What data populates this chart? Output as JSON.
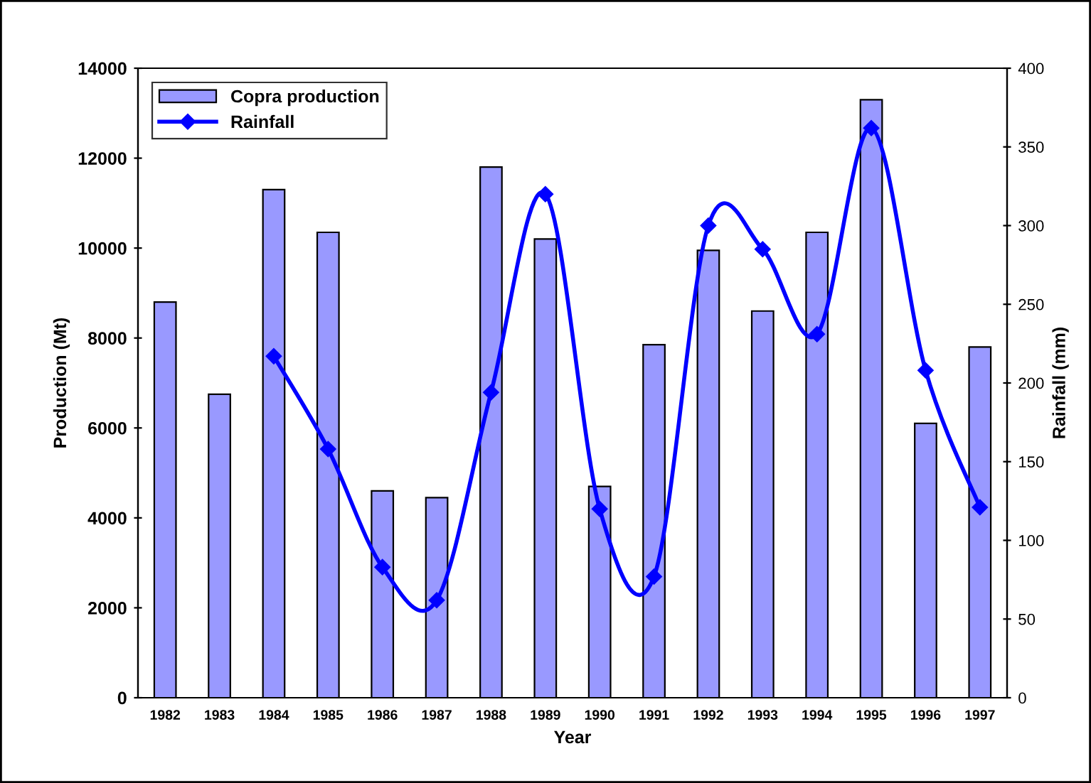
{
  "chart_data": {
    "type": "bar",
    "xlabel": "Year",
    "ylabel": "Production (Mt)",
    "y2label": "Rainfall (mm)",
    "categories": [
      "1982",
      "1983",
      "1984",
      "1985",
      "1986",
      "1987",
      "1988",
      "1989",
      "1990",
      "1991",
      "1992",
      "1993",
      "1994",
      "1995",
      "1996",
      "1997"
    ],
    "series": [
      {
        "name": "Copra production",
        "type": "bar",
        "color": "#9999ff",
        "values": [
          8800,
          6750,
          11300,
          10350,
          4600,
          4450,
          11800,
          10200,
          4700,
          7850,
          9950,
          8600,
          10350,
          13300,
          6100,
          7800
        ]
      },
      {
        "name": "Rainfall",
        "type": "line",
        "axis": "y2",
        "color": "#0000ff",
        "marker": "diamond",
        "line_style": "solid",
        "values": [
          null,
          null,
          217,
          158,
          83,
          62,
          194,
          320,
          120,
          77,
          300,
          285,
          231,
          362,
          208,
          121
        ]
      }
    ],
    "ylim": [
      0,
      14000
    ],
    "yticks": [
      0,
      2000,
      4000,
      6000,
      8000,
      10000,
      12000,
      14000
    ],
    "y2lim": [
      0,
      400
    ],
    "y2ticks": [
      0,
      50,
      100,
      150,
      200,
      250,
      300,
      350,
      400
    ],
    "grid": false,
    "legend": "top left"
  }
}
